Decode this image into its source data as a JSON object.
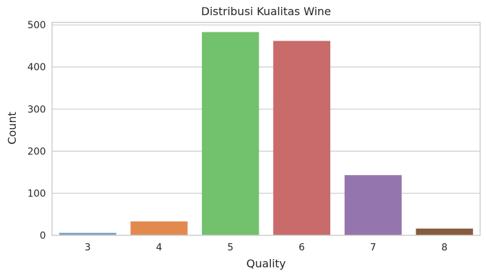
{
  "chart_data": {
    "type": "bar",
    "title": "Distribusi Kualitas Wine",
    "xlabel": "Quality",
    "ylabel": "Count",
    "categories": [
      "3",
      "4",
      "5",
      "6",
      "7",
      "8"
    ],
    "values": [
      6,
      33,
      483,
      462,
      143,
      16
    ],
    "colors": [
      "#7ea6c9",
      "#e1894f",
      "#72c16d",
      "#c96b6b",
      "#9575ad",
      "#875b3d"
    ],
    "ylim": [
      0,
      506
    ],
    "yticks": [
      0,
      100,
      200,
      300,
      400,
      500
    ],
    "grid": true,
    "legend": "none"
  }
}
